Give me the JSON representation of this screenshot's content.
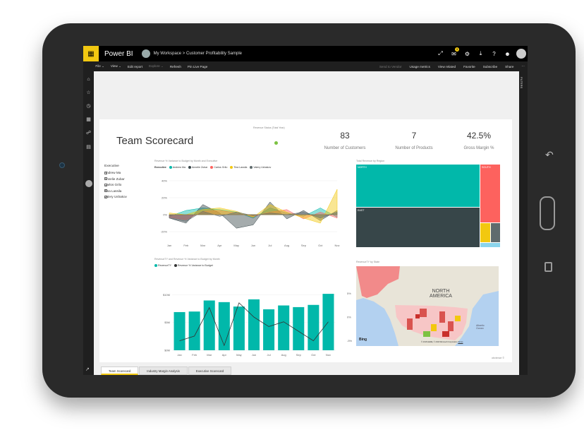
{
  "app": {
    "brand": "Power BI",
    "breadcrumb": "My Workspace  >  Customer Profitability Sample",
    "notification_count": "3"
  },
  "toolbar": {
    "file": "File ⌄",
    "view": "View ⌄",
    "edit_report": "Edit report",
    "explore": "Explore ⌄",
    "refresh": "Refresh",
    "pin_live_page": "Pin Live Page",
    "send_to_vendor": "Send to Vendor",
    "usage_metrics": "Usage metrics",
    "view_related": "View related",
    "favorite": "Favorite",
    "subscribe": "Subscribe",
    "share": "Share"
  },
  "right_panel": {
    "label": "FILTERS"
  },
  "report": {
    "title": "Team Scorecard",
    "revenue_status_title": "Revenue Status (Total Year)",
    "status_color": "#7cc242",
    "kpis": [
      {
        "value": "83",
        "label": "Number of Customers"
      },
      {
        "value": "7",
        "label": "Number of Products"
      },
      {
        "value": "42.5%",
        "label": "Gross Margin %"
      }
    ],
    "slicer": {
      "header": "Executive",
      "items": [
        "Andrew Ma",
        "Annelie Zubar",
        "Carlos Grilo",
        "Tina Lassila",
        "Valery Ushakov"
      ]
    },
    "credit": "obvience ©"
  },
  "variance_chart": {
    "title": "Revenue % Variance to Budget by Month and Executive",
    "legend_label": "Executive",
    "y_ticks": [
      "40%",
      "20%",
      "0%",
      "-20%"
    ],
    "chart_data": {
      "type": "area",
      "title": "Revenue % Variance to Budget by Month and Executive",
      "categories": [
        "Jan",
        "Feb",
        "Mar",
        "Apr",
        "May",
        "Jun",
        "Jul",
        "Aug",
        "Sep",
        "Oct",
        "Nov"
      ],
      "ylim": [
        -30,
        45
      ],
      "series": [
        {
          "name": "Andrew Ma",
          "color": "#01b8aa",
          "values": [
            -2,
            5,
            8,
            6,
            3,
            -4,
            8,
            2,
            -2,
            8,
            -3
          ]
        },
        {
          "name": "Annelie Zubar",
          "color": "#374649",
          "values": [
            -4,
            -10,
            12,
            2,
            -16,
            -12,
            15,
            -5,
            5,
            -7,
            5
          ]
        },
        {
          "name": "Carlos Grilo",
          "color": "#fd625e",
          "values": [
            -3,
            -6,
            4,
            5,
            2,
            -2,
            3,
            6,
            -5,
            3,
            -4
          ]
        },
        {
          "name": "Tina Lassila",
          "color": "#f2c80f",
          "values": [
            2,
            0,
            6,
            8,
            4,
            -3,
            12,
            3,
            -4,
            -10,
            30
          ]
        },
        {
          "name": "Valery Ushakov",
          "color": "#5f6b6d",
          "values": [
            -4,
            -8,
            4,
            -2,
            3,
            -1,
            2,
            0,
            3,
            -4,
            3
          ]
        }
      ]
    }
  },
  "combo_chart": {
    "title": "RevenueTY and Revenue % Variance to Budget by Month",
    "legend": [
      "RevenueTY",
      "Revenue % Variance to Budget"
    ],
    "y_left_ticks": [
      "$10M",
      "$5M",
      "$0M"
    ],
    "y_right_ticks": [
      "5%",
      "0%",
      "-5%"
    ],
    "chart_data": {
      "type": "bar",
      "title": "RevenueTY and Revenue % Variance to Budget by Month",
      "categories": [
        "Jan",
        "Feb",
        "Mar",
        "Apr",
        "May",
        "Jun",
        "Jul",
        "Aug",
        "Sep",
        "Oct",
        "Nov"
      ],
      "ylim": [
        0,
        12
      ],
      "y2lim": [
        -7,
        7
      ],
      "series": [
        {
          "name": "RevenueTY",
          "type": "bar",
          "color": "#01b8aa",
          "values": [
            6.9,
            7.0,
            9.0,
            8.7,
            7.9,
            9.2,
            7.4,
            8.1,
            7.8,
            8.2,
            10.2
          ]
        },
        {
          "name": "Revenue % Variance to Budget",
          "type": "line",
          "color": "#333333",
          "values": [
            -5,
            -4,
            2,
            -6,
            3,
            0,
            -2,
            -1,
            -3,
            -5,
            -1
          ]
        }
      ]
    }
  },
  "treemap": {
    "title": "Total Revenue by Region",
    "chart_data": {
      "type": "treemap",
      "title": "Total Revenue by Region",
      "items": [
        {
          "name": "NORTH",
          "value": 45,
          "color": "#01b8aa"
        },
        {
          "name": "EAST",
          "value": 35,
          "color": "#374649"
        },
        {
          "name": "SOUTH",
          "value": 15,
          "color": "#fd625e"
        },
        {
          "name": "",
          "value": 3,
          "color": "#f2c80f"
        },
        {
          "name": "",
          "value": 2,
          "color": "#5f6b6d"
        }
      ]
    }
  },
  "map": {
    "title": "RevenueTY by State",
    "label_line1": "NORTH",
    "label_line2": "AMERICA",
    "ocean_label_line1": "Atlantic",
    "ocean_label_line2": "Ocean",
    "bing": "Bing",
    "copyright": "© 2018 HERE, © 2018 Microsoft Corporation",
    "terms": "Terms"
  },
  "tabs": [
    "Team Scorecard",
    "Industry Margin Analysis",
    "Executive Scorecard"
  ]
}
